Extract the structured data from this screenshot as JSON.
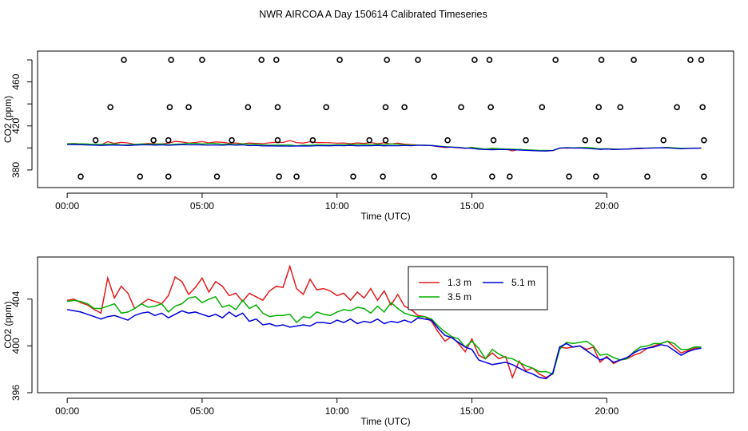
{
  "title": "NWR AIRCOA A  Day 150614  Calibrated Timeseries",
  "chart_data": [
    {
      "type": "scatter+line",
      "xlabel": "Time (UTC)",
      "ylabel": "CO2 (ppm)",
      "xlim": [
        -1.1,
        24.7
      ],
      "ylim": [
        364,
        488
      ],
      "x_ticks": [
        0,
        5,
        10,
        15,
        20
      ],
      "x_tick_labels": [
        "00:00",
        "05:00",
        "10:00",
        "15:00",
        "20:00"
      ],
      "y_ticks": [
        380,
        420,
        460
      ],
      "y_tick_labels": [
        "380",
        "420",
        "460"
      ],
      "reference_points": {
        "levels": [
          374,
          407,
          437,
          480
        ],
        "x_level_374": [
          0.5,
          2.7,
          3.75,
          5.55,
          7.85,
          8.5,
          10.6,
          11.7,
          13.6,
          15.75,
          16.4,
          18.6,
          19.6,
          21.5,
          23.6
        ],
        "x_level_407": [
          1.05,
          3.2,
          3.75,
          6.1,
          7.8,
          9.1,
          11.2,
          11.8,
          14.1,
          15.8,
          17.0,
          19.2,
          19.7,
          22.1,
          23.6
        ],
        "x_level_437": [
          1.6,
          3.8,
          4.5,
          6.7,
          7.8,
          9.6,
          11.8,
          12.5,
          14.6,
          15.7,
          17.6,
          19.7,
          20.5,
          22.6,
          23.55
        ],
        "x_level_480": [
          2.1,
          3.85,
          5.0,
          7.2,
          7.75,
          10.1,
          11.85,
          13.0,
          15.1,
          15.65,
          18.1,
          19.8,
          21.0,
          23.1,
          23.5
        ]
      },
      "series_names": [
        "1.3 m",
        "3.5 m",
        "5.1 m"
      ]
    },
    {
      "type": "line",
      "xlabel": "Time (UTC)",
      "ylabel": "CO2 (ppm)",
      "xlim": [
        -1.1,
        24.7
      ],
      "ylim": [
        396,
        407.6
      ],
      "x_ticks": [
        0,
        5,
        10,
        15,
        20
      ],
      "x_tick_labels": [
        "00:00",
        "05:00",
        "10:00",
        "15:00",
        "20:00"
      ],
      "y_ticks": [
        396,
        400,
        404
      ],
      "y_tick_labels": [
        "396",
        "400",
        "404"
      ],
      "legend": {
        "position": "top-center",
        "entries": [
          "1.3 m",
          "3.5 m",
          "5.1 m"
        ]
      },
      "x": [
        0,
        0.25,
        0.5,
        0.75,
        1,
        1.25,
        1.5,
        1.75,
        2,
        2.25,
        2.5,
        2.75,
        3,
        3.25,
        3.5,
        3.75,
        4,
        4.25,
        4.5,
        4.75,
        5,
        5.25,
        5.5,
        5.75,
        6,
        6.25,
        6.5,
        6.75,
        7,
        7.25,
        7.5,
        7.75,
        8,
        8.25,
        8.5,
        8.75,
        9,
        9.25,
        9.5,
        9.75,
        10,
        10.25,
        10.5,
        10.75,
        11,
        11.25,
        11.5,
        11.75,
        12,
        12.25,
        12.5,
        12.75,
        13,
        13.25,
        13.5,
        13.75,
        14,
        14.25,
        14.5,
        14.75,
        15,
        15.25,
        15.5,
        15.75,
        16,
        16.25,
        16.5,
        16.75,
        17,
        17.25,
        17.5,
        17.75,
        18,
        18.25,
        18.5,
        18.75,
        19,
        19.25,
        19.5,
        19.75,
        20,
        20.25,
        20.5,
        20.75,
        21,
        21.25,
        21.5,
        21.75,
        22,
        22.25,
        22.5,
        22.75,
        23,
        23.25,
        23.5
      ],
      "series": [
        {
          "name": "1.3 m",
          "color": "#e41a1c",
          "values": [
            403.9,
            404.0,
            403.7,
            403.5,
            403.1,
            402.8,
            405.8,
            404.1,
            405.1,
            404.5,
            403.2,
            403.6,
            404.0,
            403.8,
            403.6,
            404.3,
            405.9,
            405.5,
            404.4,
            405.0,
            405.8,
            404.6,
            405.5,
            405.1,
            404.3,
            404.5,
            403.8,
            404.5,
            404.2,
            403.9,
            404.7,
            405.1,
            405.0,
            406.8,
            404.9,
            404.4,
            405.7,
            404.8,
            404.9,
            404.7,
            404.3,
            404.5,
            403.9,
            404.6,
            404.1,
            404.9,
            403.9,
            404.7,
            403.5,
            404.4,
            403.4,
            403.1,
            402.6,
            402.5,
            402.1,
            401.2,
            400.4,
            400.8,
            400.2,
            399.5,
            400.6,
            399.2,
            398.9,
            399.4,
            398.9,
            399.1,
            397.3,
            398.7,
            397.9,
            398.1,
            397.6,
            397.3,
            397.6,
            399.9,
            399.8,
            399.9,
            400.0,
            399.7,
            399.9,
            398.6,
            399.1,
            398.5,
            398.8,
            398.9,
            399.2,
            399.4,
            399.8,
            400.0,
            400.2,
            400.4,
            399.9,
            399.4,
            399.6,
            399.8,
            399.9
          ]
        },
        {
          "name": "3.5 m",
          "color": "#00b000",
          "values": [
            403.8,
            403.9,
            403.8,
            403.6,
            403.2,
            403.2,
            403.4,
            403.6,
            402.8,
            402.9,
            403.2,
            403.6,
            403.3,
            403.4,
            403.6,
            402.9,
            403.4,
            403.6,
            404.1,
            404.2,
            403.7,
            404.0,
            404.2,
            403.3,
            403.5,
            403.1,
            403.9,
            403.2,
            403.5,
            402.8,
            402.5,
            402.6,
            402.6,
            402.7,
            402.0,
            402.5,
            402.4,
            402.9,
            402.7,
            402.6,
            402.9,
            403.1,
            403.0,
            403.3,
            403.2,
            402.8,
            403.4,
            402.9,
            403.7,
            403.2,
            402.8,
            402.6,
            402.5,
            402.5,
            402.3,
            401.7,
            401.2,
            400.8,
            400.6,
            399.9,
            400.4,
            399.8,
            398.9,
            399.7,
            399.3,
            399.0,
            398.9,
            398.6,
            398.3,
            398.1,
            397.8,
            397.8,
            397.6,
            399.7,
            400.3,
            400.2,
            400.3,
            400.4,
            400.0,
            399.2,
            399.3,
            399.0,
            398.8,
            398.9,
            399.5,
            399.9,
            400.0,
            400.2,
            400.2,
            400.4,
            400.2,
            399.7,
            399.7,
            399.9,
            399.9
          ]
        },
        {
          "name": "5.1 m",
          "color": "#0000dd",
          "values": [
            403.1,
            403.0,
            402.9,
            402.7,
            402.5,
            402.3,
            402.5,
            402.6,
            402.4,
            402.2,
            402.6,
            402.8,
            402.9,
            402.6,
            402.8,
            402.4,
            402.7,
            403.0,
            402.8,
            402.9,
            402.7,
            402.5,
            402.7,
            402.4,
            402.9,
            402.5,
            402.8,
            402.1,
            402.3,
            401.8,
            401.9,
            401.7,
            401.8,
            401.6,
            401.7,
            401.8,
            401.7,
            402.0,
            402.0,
            401.9,
            402.2,
            402.0,
            402.3,
            401.9,
            402.1,
            402.0,
            402.3,
            401.9,
            402.1,
            402.0,
            402.2,
            402.0,
            402.4,
            402.3,
            402.2,
            401.5,
            400.9,
            400.7,
            400.3,
            399.9,
            399.7,
            398.8,
            398.6,
            398.4,
            398.5,
            398.6,
            398.4,
            398.1,
            397.8,
            397.6,
            397.3,
            397.2,
            397.7,
            399.9,
            400.2,
            399.9,
            400.0,
            399.6,
            399.2,
            398.8,
            399.0,
            398.6,
            398.8,
            399.0,
            399.4,
            399.7,
            399.8,
            399.9,
            400.1,
            400.0,
            399.6,
            399.2,
            399.5,
            399.7,
            399.8
          ]
        }
      ]
    }
  ]
}
